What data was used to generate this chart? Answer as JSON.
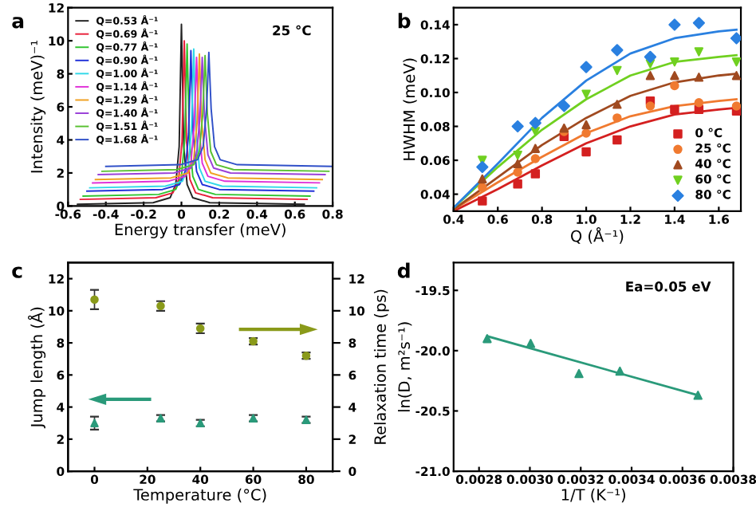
{
  "chart_data": [
    {
      "type": "line",
      "title": "a",
      "xlabel": "Energy transfer (meV)",
      "ylabel": "Intensity (meV)⁻¹",
      "xlim": [
        -0.6,
        0.8
      ],
      "xticks": [
        -0.6,
        -0.4,
        -0.2,
        0,
        0.2,
        0.4,
        0.6,
        0.8
      ],
      "ylim": [
        0,
        12
      ],
      "yticks": [
        0,
        2,
        4,
        6,
        8,
        10,
        12
      ],
      "legend": "top left",
      "annotations": [
        "25 °C"
      ],
      "series": [
        {
          "name": "Q=0.53 Å⁻¹",
          "color": "#222222",
          "x": [
            -0.55,
            -0.15,
            -0.06,
            -0.03,
            -0.012,
            0,
            0.012,
            0.03,
            0.06,
            0.15,
            0.65
          ],
          "values": [
            0.1,
            0.2,
            0.5,
            1.3,
            3.6,
            11.0,
            3.6,
            1.3,
            0.5,
            0.2,
            0.1
          ]
        },
        {
          "name": "Q=0.69 Å⁻¹",
          "color": "#e8203a",
          "x": [
            -0.535,
            -0.135,
            -0.045,
            -0.015,
            0.003,
            0.015,
            0.027,
            0.045,
            0.075,
            0.165,
            0.665
          ],
          "values": [
            0.4,
            0.5,
            0.8,
            1.6,
            3.9,
            10.0,
            3.9,
            1.6,
            0.8,
            0.5,
            0.4
          ]
        },
        {
          "name": "Q=0.77 Å⁻¹",
          "color": "#2fc42f",
          "x": [
            -0.52,
            -0.12,
            -0.03,
            0,
            0.018,
            0.03,
            0.042,
            0.06,
            0.09,
            0.18,
            0.68
          ],
          "values": [
            0.6,
            0.7,
            1.0,
            1.8,
            4.1,
            9.8,
            4.1,
            1.8,
            1.0,
            0.7,
            0.6
          ]
        },
        {
          "name": "Q=0.90 Å⁻¹",
          "color": "#2030d8",
          "x": [
            -0.5,
            -0.1,
            -0.01,
            0.02,
            0.038,
            0.05,
            0.062,
            0.08,
            0.11,
            0.2,
            0.7
          ],
          "values": [
            0.9,
            1.0,
            1.3,
            2.1,
            4.4,
            9.4,
            4.4,
            2.1,
            1.3,
            1.0,
            0.9
          ]
        },
        {
          "name": "Q=1.00 Å⁻¹",
          "color": "#30d8e8",
          "x": [
            -0.485,
            -0.085,
            0.005,
            0.035,
            0.053,
            0.065,
            0.077,
            0.095,
            0.125,
            0.215,
            0.715
          ],
          "values": [
            1.1,
            1.2,
            1.5,
            2.3,
            4.6,
            9.5,
            4.6,
            2.3,
            1.5,
            1.2,
            1.1
          ]
        },
        {
          "name": "Q=1.14 Å⁻¹",
          "color": "#e030d8",
          "x": [
            -0.47,
            -0.07,
            0.02,
            0.05,
            0.068,
            0.08,
            0.092,
            0.11,
            0.14,
            0.23,
            0.73
          ],
          "values": [
            1.4,
            1.5,
            1.8,
            2.6,
            4.9,
            9.0,
            4.9,
            2.6,
            1.8,
            1.5,
            1.4
          ]
        },
        {
          "name": "Q=1.29 Å⁻¹",
          "color": "#f0a020",
          "x": [
            -0.455,
            -0.055,
            0.035,
            0.065,
            0.083,
            0.095,
            0.107,
            0.125,
            0.155,
            0.245,
            0.745
          ],
          "values": [
            1.6,
            1.7,
            2.0,
            2.8,
            5.1,
            9.2,
            5.1,
            2.8,
            2.0,
            1.7,
            1.6
          ]
        },
        {
          "name": "Q=1.40 Å⁻¹",
          "color": "#9a40d8",
          "x": [
            -0.44,
            -0.04,
            0.05,
            0.08,
            0.098,
            0.11,
            0.122,
            0.14,
            0.17,
            0.26,
            0.76
          ],
          "values": [
            1.9,
            2.0,
            2.3,
            3.1,
            5.4,
            9.0,
            5.4,
            3.1,
            2.3,
            2.0,
            1.9
          ]
        },
        {
          "name": "Q=1.51 Å⁻¹",
          "color": "#58c030",
          "x": [
            -0.42,
            -0.025,
            0.065,
            0.095,
            0.113,
            0.125,
            0.137,
            0.155,
            0.185,
            0.275,
            0.78
          ],
          "values": [
            2.1,
            2.2,
            2.5,
            3.3,
            5.6,
            9.1,
            5.6,
            3.3,
            2.5,
            2.2,
            2.1
          ]
        },
        {
          "name": "Q=1.68 Å⁻¹",
          "color": "#3050c8",
          "x": [
            -0.4,
            -0.005,
            0.085,
            0.115,
            0.133,
            0.145,
            0.157,
            0.175,
            0.205,
            0.295,
            0.8
          ],
          "values": [
            2.4,
            2.5,
            2.8,
            3.6,
            5.9,
            9.3,
            5.9,
            3.6,
            2.8,
            2.5,
            2.4
          ]
        }
      ]
    },
    {
      "type": "scatter",
      "title": "b",
      "xlabel": "Q (Å⁻¹)",
      "ylabel": "HWHM (meV)",
      "xlim": [
        0.4,
        1.7
      ],
      "xticks": [
        0.4,
        0.6,
        0.8,
        {
          "value": 1.0,
          "label": "1.0"
        },
        1.2,
        1.4,
        1.6
      ],
      "ylim": [
        0.03,
        0.15
      ],
      "yticks": [
        0.04,
        0.06,
        0.08,
        {
          "value": 0.1,
          "label": "0.10"
        },
        0.12,
        0.14
      ],
      "legend": "bottom right",
      "x": [
        0.53,
        0.69,
        0.77,
        0.9,
        1.0,
        1.14,
        1.29,
        1.4,
        1.51,
        1.68
      ],
      "series": [
        {
          "name": "0 °C",
          "color": "#d42020",
          "marker": "square",
          "values": [
            0.036,
            0.046,
            0.052,
            0.074,
            0.065,
            0.072,
            0.095,
            0.09,
            0.09,
            0.089
          ]
        },
        {
          "name": "25 °C",
          "color": "#f07a30",
          "marker": "circle",
          "values": [
            0.044,
            0.053,
            0.061,
            0.077,
            0.076,
            0.085,
            0.092,
            0.104,
            0.094,
            0.092
          ]
        },
        {
          "name": "40 °C",
          "color": "#a04a20",
          "marker": "triangle",
          "values": [
            0.049,
            0.058,
            0.067,
            0.079,
            0.081,
            0.093,
            0.11,
            0.11,
            0.109,
            0.11
          ]
        },
        {
          "name": "60 °C",
          "color": "#70d020",
          "marker": "triangle_down",
          "values": [
            0.06,
            0.063,
            0.077,
            null,
            0.099,
            0.113,
            0.117,
            0.118,
            0.124,
            0.118
          ]
        },
        {
          "name": "80 °C",
          "color": "#2a80e0",
          "marker": "diamond",
          "values": [
            0.056,
            0.08,
            0.082,
            0.092,
            0.115,
            0.125,
            0.121,
            0.14,
            0.141,
            0.132
          ]
        },
        {
          "type": "line",
          "color": "#d42020",
          "x": [
            0.4,
            0.6,
            0.8,
            1.0,
            1.2,
            1.4,
            1.6,
            1.68
          ],
          "values": [
            0.03,
            0.043,
            0.057,
            0.07,
            0.08,
            0.087,
            0.09,
            0.091
          ]
        },
        {
          "type": "line",
          "color": "#f07a30",
          "x": [
            0.4,
            0.6,
            0.8,
            1.0,
            1.2,
            1.4,
            1.6,
            1.68
          ],
          "values": [
            0.031,
            0.047,
            0.062,
            0.076,
            0.086,
            0.092,
            0.095,
            0.096
          ]
        },
        {
          "type": "line",
          "color": "#a04a20",
          "x": [
            0.4,
            0.6,
            0.8,
            1.0,
            1.2,
            1.4,
            1.6,
            1.68
          ],
          "values": [
            0.031,
            0.05,
            0.069,
            0.085,
            0.098,
            0.106,
            0.11,
            0.111
          ]
        },
        {
          "type": "line",
          "color": "#70d020",
          "x": [
            0.4,
            0.6,
            0.8,
            1.0,
            1.2,
            1.4,
            1.6,
            1.68
          ],
          "values": [
            0.032,
            0.056,
            0.078,
            0.096,
            0.11,
            0.118,
            0.121,
            0.122
          ]
        },
        {
          "type": "line",
          "color": "#2a80e0",
          "x": [
            0.4,
            0.6,
            0.8,
            1.0,
            1.2,
            1.4,
            1.6,
            1.68
          ],
          "values": [
            0.032,
            0.058,
            0.085,
            0.107,
            0.123,
            0.132,
            0.136,
            0.137
          ]
        }
      ]
    },
    {
      "type": "scatter",
      "title": "c",
      "xlabel": "Temperature (°C)",
      "ylabel": "Jump length (Å)",
      "y2label": "Relaxation time (ps)",
      "xlim": [
        -10,
        90
      ],
      "xticks": [
        0,
        20,
        40,
        60,
        80
      ],
      "ylim": [
        0,
        13
      ],
      "yticks": [
        0,
        2,
        4,
        6,
        8,
        10,
        12
      ],
      "y2lim": [
        0,
        13
      ],
      "y2ticks": [
        0,
        2,
        4,
        6,
        8,
        10,
        12
      ],
      "x": [
        0,
        25,
        40,
        60,
        80
      ],
      "series": [
        {
          "color": "#2a9a7a",
          "marker": "triangle",
          "values": [
            3.0,
            3.3,
            3.0,
            3.3,
            3.2
          ],
          "errors": [
            0.4,
            0.2,
            0.2,
            0.2,
            0.2
          ]
        },
        {
          "color": "#8a9a1a",
          "marker": "circle",
          "axis": "y2",
          "values": [
            10.7,
            10.3,
            8.9,
            8.1,
            7.2
          ],
          "errors": [
            0.6,
            0.3,
            0.3,
            0.2,
            0.2
          ]
        }
      ]
    },
    {
      "type": "scatter",
      "title": "d",
      "xlabel": "1/T (K⁻¹)",
      "ylabel": "ln(D, m²s⁻¹)",
      "xlim": [
        0.0027,
        0.0038
      ],
      "xticks": [
        0.0028,
        {
          "value": 0.003,
          "label": "0.0030"
        },
        0.0032,
        0.0034,
        0.0036,
        0.0038
      ],
      "ylim": [
        -21.0,
        -19.27
      ],
      "yticks": [
        {
          "value": -21.0,
          "label": "-21.0"
        },
        {
          "value": -20.5,
          "label": "-20.5"
        },
        {
          "value": -20.0,
          "label": "-20.0"
        },
        {
          "value": -19.5,
          "label": "-19.5"
        }
      ],
      "annotations": [
        "Ea=0.05 eV"
      ],
      "series": [
        {
          "color": "#2a9a7a",
          "marker": "triangle",
          "x": [
            0.002832,
            0.003003,
            0.003193,
            0.003354,
            0.003661
          ],
          "values": [
            -19.9,
            -19.94,
            -20.19,
            -20.17,
            -20.37
          ]
        },
        {
          "type": "line",
          "color": "#2a9a7a",
          "x": [
            0.002832,
            0.003661
          ],
          "values": [
            -19.88,
            -20.37
          ]
        }
      ]
    }
  ]
}
